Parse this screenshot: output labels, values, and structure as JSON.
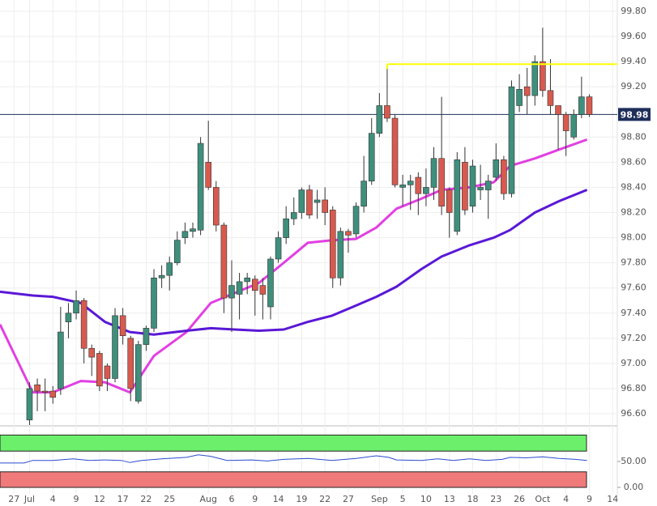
{
  "chart_data": {
    "type": "candlestick",
    "xlim": [
      -1.8,
      77.6
    ],
    "xticks": [
      {
        "value": 0,
        "label": "27"
      },
      {
        "value": 2,
        "label": "Jul"
      },
      {
        "value": 5,
        "label": "4"
      },
      {
        "value": 8,
        "label": "9"
      },
      {
        "value": 11,
        "label": "12"
      },
      {
        "value": 14,
        "label": "17"
      },
      {
        "value": 17,
        "label": "22"
      },
      {
        "value": 20,
        "label": "25"
      },
      {
        "value": 25,
        "label": "Aug"
      },
      {
        "value": 28,
        "label": "6"
      },
      {
        "value": 31,
        "label": "9"
      },
      {
        "value": 34,
        "label": "14"
      },
      {
        "value": 37,
        "label": "19"
      },
      {
        "value": 40,
        "label": "22"
      },
      {
        "value": 43,
        "label": "27"
      },
      {
        "value": 47,
        "label": "Sep"
      },
      {
        "value": 50,
        "label": "5"
      },
      {
        "value": 53,
        "label": "10"
      },
      {
        "value": 56,
        "label": "13"
      },
      {
        "value": 59,
        "label": "18"
      },
      {
        "value": 62,
        "label": "23"
      },
      {
        "value": 65,
        "label": "26"
      },
      {
        "value": 68,
        "label": "Oct"
      },
      {
        "value": 71,
        "label": "4"
      },
      {
        "value": 74,
        "label": "9"
      },
      {
        "value": 77,
        "label": "14"
      }
    ],
    "ylim": [
      96.51,
      99.89
    ],
    "yticks": [
      {
        "value": 96.6,
        "label": "96.60"
      },
      {
        "value": 96.8,
        "label": "96.80"
      },
      {
        "value": 97.0,
        "label": "97.00"
      },
      {
        "value": 97.2,
        "label": "97.20"
      },
      {
        "value": 97.4,
        "label": "97.40"
      },
      {
        "value": 97.6,
        "label": "97.60"
      },
      {
        "value": 97.8,
        "label": "97.80"
      },
      {
        "value": 98.0,
        "label": "98.00"
      },
      {
        "value": 98.2,
        "label": "98.20"
      },
      {
        "value": 98.4,
        "label": "98.40"
      },
      {
        "value": 98.6,
        "label": "98.60"
      },
      {
        "value": 98.8,
        "label": "98.80"
      },
      {
        "value": 99.2,
        "label": "99.20"
      },
      {
        "value": 99.4,
        "label": "99.40"
      },
      {
        "value": 99.6,
        "label": "99.60"
      },
      {
        "value": 99.8,
        "label": "99.80"
      }
    ],
    "grid": true,
    "up_color": "#3f8f7c",
    "down_color": "#d85a4e",
    "x": [
      2,
      3,
      4,
      5,
      6,
      7,
      8,
      9,
      10,
      11,
      12,
      13,
      14,
      15,
      16,
      17,
      18,
      19,
      20,
      21,
      22,
      23,
      24,
      25,
      26,
      27,
      28,
      29,
      30,
      31,
      32,
      33,
      34,
      35,
      36,
      37,
      38,
      39,
      40,
      41,
      42,
      43,
      44,
      45,
      46,
      47,
      48,
      49,
      50,
      51,
      52,
      53,
      54,
      55,
      56,
      57,
      58,
      59,
      60,
      61,
      62,
      63,
      64,
      65,
      66,
      67,
      68,
      69,
      70,
      71,
      72,
      73,
      74
    ],
    "ohlc": [
      [
        96.55,
        96.85,
        96.45,
        96.8
      ],
      [
        96.83,
        96.88,
        96.62,
        96.78
      ],
      [
        96.78,
        96.88,
        96.62,
        96.77
      ],
      [
        96.78,
        96.82,
        96.68,
        96.73
      ],
      [
        96.8,
        97.45,
        96.75,
        97.25
      ],
      [
        97.33,
        97.48,
        97.2,
        97.4
      ],
      [
        97.4,
        97.58,
        97.35,
        97.5
      ],
      [
        97.5,
        97.52,
        97.0,
        97.12
      ],
      [
        97.12,
        97.15,
        96.9,
        97.05
      ],
      [
        97.08,
        97.1,
        96.78,
        96.82
      ],
      [
        96.98,
        97.0,
        96.78,
        96.88
      ],
      [
        96.88,
        97.44,
        96.85,
        97.38
      ],
      [
        97.38,
        97.44,
        97.15,
        97.22
      ],
      [
        97.2,
        97.22,
        96.7,
        96.8
      ],
      [
        96.7,
        97.18,
        96.68,
        97.15
      ],
      [
        97.15,
        97.3,
        97.1,
        97.28
      ],
      [
        97.28,
        97.75,
        97.25,
        97.68
      ],
      [
        97.68,
        97.78,
        97.6,
        97.7
      ],
      [
        97.7,
        97.85,
        97.58,
        97.8
      ],
      [
        97.8,
        98.05,
        97.78,
        97.98
      ],
      [
        98.0,
        98.12,
        97.95,
        98.05
      ],
      [
        98.05,
        98.12,
        98.0,
        98.07
      ],
      [
        98.06,
        98.8,
        98.02,
        98.75
      ],
      [
        98.6,
        98.93,
        98.38,
        98.4
      ],
      [
        98.4,
        98.45,
        98.05,
        98.1
      ],
      [
        98.1,
        98.12,
        97.4,
        97.52
      ],
      [
        97.52,
        97.82,
        97.25,
        97.62
      ],
      [
        97.55,
        97.72,
        97.35,
        97.65
      ],
      [
        97.65,
        97.72,
        97.55,
        97.68
      ],
      [
        97.67,
        97.7,
        97.38,
        97.58
      ],
      [
        97.62,
        97.68,
        97.35,
        97.55
      ],
      [
        97.45,
        97.85,
        97.35,
        97.83
      ],
      [
        97.83,
        98.05,
        97.8,
        98.0
      ],
      [
        98.0,
        98.25,
        97.95,
        98.15
      ],
      [
        98.15,
        98.32,
        98.1,
        98.2
      ],
      [
        98.2,
        98.4,
        98.15,
        98.38
      ],
      [
        98.38,
        98.42,
        98.15,
        98.18
      ],
      [
        98.28,
        98.38,
        98.15,
        98.3
      ],
      [
        98.3,
        98.4,
        98.1,
        98.2
      ],
      [
        98.22,
        98.25,
        97.6,
        97.68
      ],
      [
        97.68,
        98.08,
        97.62,
        98.05
      ],
      [
        98.05,
        98.07,
        97.88,
        98.02
      ],
      [
        98.03,
        98.28,
        98.0,
        98.25
      ],
      [
        98.25,
        98.65,
        98.2,
        98.45
      ],
      [
        98.45,
        98.95,
        98.42,
        98.83
      ],
      [
        98.83,
        99.15,
        98.8,
        99.05
      ],
      [
        99.05,
        99.38,
        98.92,
        98.95
      ],
      [
        98.95,
        98.98,
        98.4,
        98.42
      ],
      [
        98.4,
        98.5,
        98.25,
        98.42
      ],
      [
        98.42,
        98.5,
        98.22,
        98.45
      ],
      [
        98.48,
        98.52,
        98.18,
        98.35
      ],
      [
        98.35,
        98.55,
        98.25,
        98.4
      ],
      [
        98.4,
        98.72,
        98.3,
        98.63
      ],
      [
        98.63,
        99.12,
        98.18,
        98.25
      ],
      [
        98.38,
        98.4,
        98.0,
        98.2
      ],
      [
        98.05,
        98.68,
        98.02,
        98.62
      ],
      [
        98.6,
        98.72,
        98.18,
        98.22
      ],
      [
        98.25,
        98.62,
        98.2,
        98.57
      ],
      [
        98.38,
        98.58,
        98.3,
        98.4
      ],
      [
        98.38,
        98.5,
        98.15,
        98.45
      ],
      [
        98.48,
        98.75,
        98.45,
        98.62
      ],
      [
        98.62,
        98.65,
        98.3,
        98.35
      ],
      [
        98.35,
        99.25,
        98.32,
        99.2
      ],
      [
        99.05,
        99.3,
        99.0,
        99.18
      ],
      [
        99.2,
        99.35,
        98.98,
        99.13
      ],
      [
        99.13,
        99.45,
        99.05,
        99.4
      ],
      [
        99.4,
        99.67,
        99.12,
        99.17
      ],
      [
        99.17,
        99.42,
        98.98,
        99.05
      ],
      [
        99.05,
        99.05,
        98.7,
        98.98
      ],
      [
        98.98,
        99.0,
        98.65,
        98.85
      ],
      [
        98.8,
        99.02,
        98.78,
        98.98
      ],
      [
        98.98,
        99.28,
        98.95,
        99.12
      ],
      [
        99.12,
        99.14,
        98.96,
        98.98
      ]
    ],
    "series": [
      {
        "color": "#e23fe2",
        "x": [
          -1.8,
          2.4,
          5,
          8.6,
          11.7,
          14.9,
          18,
          22.2,
          25.3,
          28.4,
          31.5,
          34.7,
          37.8,
          40.9,
          44,
          46.6,
          49.2,
          52.4,
          55,
          58.6,
          61.7,
          63.8,
          67,
          70.1,
          73.7
        ],
        "values": [
          97.31,
          96.77,
          96.77,
          96.86,
          96.85,
          96.77,
          97.06,
          97.25,
          97.48,
          97.56,
          97.64,
          97.8,
          97.96,
          97.98,
          97.99,
          98.08,
          98.23,
          98.31,
          98.38,
          98.4,
          98.44,
          98.57,
          98.63,
          98.7,
          98.78
        ]
      },
      {
        "color": "#5a18d6",
        "x": [
          -1.8,
          2.4,
          5,
          8.6,
          11.7,
          14.9,
          18,
          22.2,
          25.3,
          28.4,
          31.5,
          34.7,
          37.8,
          40.9,
          44,
          46.6,
          49.2,
          52.4,
          55,
          58.6,
          61.7,
          63.8,
          67,
          70.1,
          73.7
        ],
        "values": [
          97.57,
          97.54,
          97.53,
          97.48,
          97.33,
          97.25,
          97.23,
          97.26,
          97.28,
          97.27,
          97.26,
          97.27,
          97.33,
          97.38,
          97.46,
          97.53,
          97.61,
          97.75,
          97.85,
          97.94,
          98.0,
          98.06,
          98.2,
          98.29,
          98.38
        ]
      }
    ],
    "levels": [
      {
        "value": 99.38,
        "x": 48,
        "color": "#ffff00"
      }
    ],
    "last_price": 98.98,
    "indicator": {
      "ylim": [
        -12.5,
        112.5
      ],
      "yticks": [
        {
          "value": 0,
          "label": "0.00"
        },
        {
          "value": 50,
          "label": "50.00"
        }
      ],
      "zones": [
        {
          "from": 70,
          "to": 101,
          "color": "#6cf06c"
        },
        {
          "from": 0,
          "to": 30,
          "color": "#f07a7a"
        }
      ],
      "line": {
        "color": "#2a4bd0",
        "x": [
          -1.8,
          1.3,
          2.4,
          5,
          7.6,
          9.7,
          11.7,
          13.8,
          14.9,
          16.4,
          19,
          22.2,
          23.7,
          25.3,
          27.4,
          30.5,
          32.6,
          34.7,
          37.8,
          40.9,
          44,
          46.6,
          48.2,
          49.2,
          52.4,
          54.5,
          56.5,
          58.6,
          60.7,
          62.8,
          63.8,
          65.9,
          68,
          70.1,
          72.2,
          73.7
        ],
        "values": [
          47,
          47,
          52,
          52,
          55,
          52,
          53,
          52,
          48,
          52,
          55,
          58,
          63,
          60,
          52,
          53,
          51,
          54,
          56,
          52,
          56,
          61,
          58,
          53,
          52,
          55,
          52,
          55,
          52,
          54,
          58,
          57,
          59,
          56,
          54,
          52
        ]
      }
    }
  }
}
